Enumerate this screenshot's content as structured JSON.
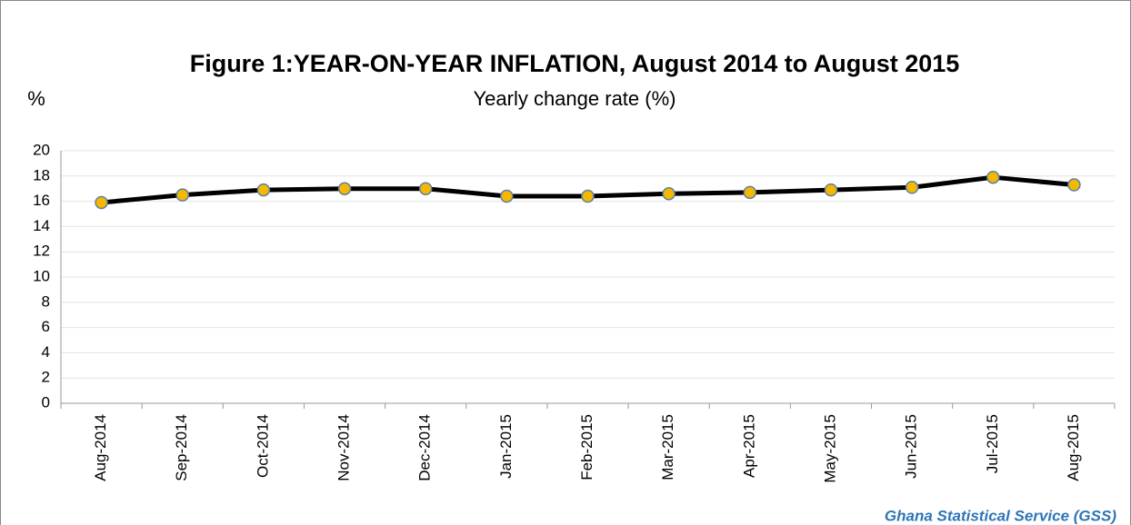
{
  "chart_data": {
    "type": "line",
    "title": "Figure 1:YEAR-ON-YEAR  INFLATION, August  2014 to August 2015",
    "subtitle": "Yearly change rate  (%)",
    "y_label": "%",
    "source": "Ghana Statistical Service (GSS)",
    "categories": [
      "Aug-2014",
      "Sep-2014",
      "Oct-2014",
      "Nov-2014",
      "Dec-2014",
      "Jan-2015",
      "Feb-2015",
      "Mar-2015",
      "Apr-2015",
      "May-2015",
      "Jun-2015",
      "Jul-2015",
      "Aug-2015"
    ],
    "series": [
      {
        "name": "Yearly change rate",
        "color": "#000000",
        "marker_color": "#f5b800",
        "values": [
          15.9,
          16.5,
          16.9,
          17.0,
          17.0,
          16.4,
          16.4,
          16.6,
          16.7,
          16.9,
          17.1,
          17.9,
          17.3
        ]
      }
    ],
    "ylim": [
      0,
      20
    ],
    "yticks": [
      0,
      2,
      4,
      6,
      8,
      10,
      12,
      14,
      16,
      18,
      20
    ],
    "grid": true
  }
}
